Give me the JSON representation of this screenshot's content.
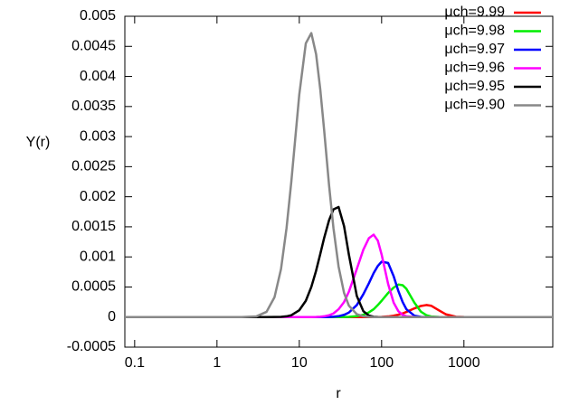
{
  "chart_data": {
    "type": "line",
    "x_label": "r",
    "y_label": "Y(r)",
    "log_x": true,
    "xlim": [
      0.076,
      12000
    ],
    "xticks": [
      0.1,
      1,
      10,
      100,
      1000
    ],
    "ylim": [
      -0.0005,
      0.005
    ],
    "yticks": [
      -0.0005,
      0,
      0.0005,
      0.001,
      0.0015,
      0.002,
      0.0025,
      0.003,
      0.0035,
      0.004,
      0.0045,
      0.005
    ],
    "legend": "top-right",
    "x": [
      0.076,
      1,
      2,
      3,
      4,
      5,
      6,
      7,
      8,
      10,
      12,
      14,
      16,
      18,
      20,
      23,
      26,
      30,
      35,
      40,
      50,
      60,
      70,
      80,
      90,
      100,
      120,
      140,
      160,
      180,
      200,
      250,
      300,
      350,
      400,
      500,
      600,
      800,
      1000,
      12000
    ],
    "series": [
      {
        "name": "μch=9.99",
        "color": "#ff0000",
        "values": [
          0,
          0,
          0,
          0,
          0,
          0,
          0,
          0,
          0,
          0,
          0,
          0,
          0,
          0,
          0,
          0,
          0,
          0,
          0,
          0,
          0,
          0,
          0,
          0,
          2e-06,
          4e-06,
          1e-05,
          2.2e-05,
          4e-05,
          6e-05,
          8.5e-05,
          0.000144,
          0.000184,
          0.0002,
          0.000188,
          0.00011,
          4.7e-05,
          6e-06,
          1e-06,
          0
        ]
      },
      {
        "name": "μch=9.98",
        "color": "#00ee00",
        "values": [
          0,
          0,
          0,
          0,
          0,
          0,
          0,
          0,
          0,
          0,
          0,
          0,
          0,
          0,
          0,
          0,
          0,
          0,
          1e-06,
          3e-06,
          1.4e-05,
          3.8e-05,
          7.7e-05,
          0.00013,
          0.0002,
          0.00027,
          0.0004,
          0.00049,
          0.00054,
          0.00053,
          0.00047,
          0.00024,
          9e-05,
          3e-05,
          9e-06,
          1e-06,
          0,
          0,
          0,
          0
        ]
      },
      {
        "name": "μch=9.97",
        "color": "#0000ff",
        "values": [
          0,
          0,
          0,
          0,
          0,
          0,
          0,
          0,
          0,
          0,
          0,
          0,
          0,
          0,
          0,
          2e-06,
          6e-06,
          1.4e-05,
          3.7e-05,
          7.5e-05,
          0.0002,
          0.00038,
          0.00056,
          0.00073,
          0.00085,
          0.00092,
          0.0009,
          0.00068,
          0.00043,
          0.00025,
          0.00013,
          2.3e-05,
          4e-06,
          0,
          0,
          0,
          0,
          0,
          0,
          0
        ]
      },
      {
        "name": "μch=9.96",
        "color": "#ff00ff",
        "values": [
          0,
          0,
          0,
          0,
          0,
          0,
          0,
          0,
          0,
          0,
          0,
          0,
          2e-06,
          6e-06,
          1.2e-05,
          3e-05,
          6e-05,
          0.00013,
          0.00025,
          0.00042,
          0.0008,
          0.00112,
          0.00131,
          0.00137,
          0.00127,
          0.00104,
          0.00055,
          0.00024,
          9.6e-05,
          3.6e-05,
          1.3e-05,
          1e-06,
          0,
          0,
          0,
          0,
          0,
          0,
          0,
          0
        ]
      },
      {
        "name": "μch=9.95",
        "color": "#000000",
        "values": [
          0,
          0,
          0,
          0,
          0,
          1e-06,
          4e-06,
          1.2e-05,
          3e-05,
          0.000114,
          0.00027,
          0.0005,
          0.00077,
          0.00105,
          0.00131,
          0.00161,
          0.00179,
          0.00183,
          0.00151,
          0.00104,
          0.00035,
          9.7e-05,
          2.5e-05,
          6e-06,
          1e-06,
          0,
          0,
          0,
          0,
          0,
          0,
          0,
          0,
          0,
          0,
          0,
          0,
          0,
          0,
          0
        ]
      },
      {
        "name": "μch=9.90",
        "color": "#888888",
        "values": [
          0,
          0,
          0,
          1e-05,
          8.7e-05,
          0.00033,
          0.0008,
          0.00148,
          0.00225,
          0.0037,
          0.00455,
          0.00472,
          0.00437,
          0.00378,
          0.00312,
          0.00219,
          0.00148,
          0.00084,
          0.0004,
          0.00019,
          4.7e-05,
          1.2e-05,
          3e-06,
          0,
          0,
          0,
          0,
          0,
          0,
          0,
          0,
          0,
          0,
          0,
          0,
          0,
          0,
          0,
          0,
          0
        ]
      }
    ]
  }
}
